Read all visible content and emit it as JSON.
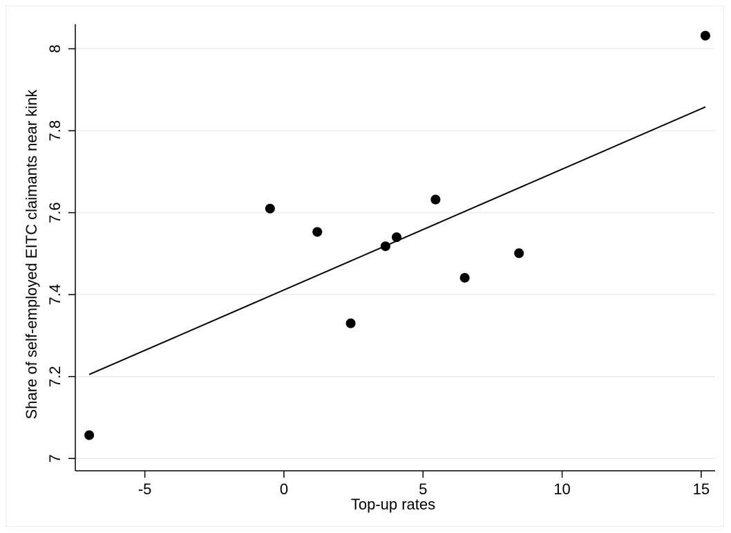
{
  "chart_data": {
    "type": "scatter",
    "title": "",
    "xlabel": "Top-up rates",
    "ylabel": "Share of self-employed EITC claimants near kink",
    "xlim": [
      -7.5,
      15.5
    ],
    "ylim": [
      6.97,
      8.06
    ],
    "xticks": [
      -5,
      0,
      5,
      10,
      15
    ],
    "yticks": [
      7,
      7.2,
      7.4,
      7.6,
      7.8,
      8
    ],
    "grid": "horizontal",
    "colors": {
      "points": "#000000",
      "fit_line": "#000000",
      "grid": "#e5eef2",
      "axis": "#000000"
    },
    "points": [
      {
        "x": -7.0,
        "y": 7.057
      },
      {
        "x": -0.5,
        "y": 7.61
      },
      {
        "x": 1.2,
        "y": 7.553
      },
      {
        "x": 2.4,
        "y": 7.33
      },
      {
        "x": 3.65,
        "y": 7.518
      },
      {
        "x": 4.05,
        "y": 7.54
      },
      {
        "x": 5.45,
        "y": 7.632
      },
      {
        "x": 6.5,
        "y": 7.441
      },
      {
        "x": 8.45,
        "y": 7.501
      },
      {
        "x": 15.15,
        "y": 8.032
      }
    ],
    "fit_line": {
      "x": [
        -7.0,
        15.15
      ],
      "y": [
        7.205,
        7.858
      ]
    }
  }
}
